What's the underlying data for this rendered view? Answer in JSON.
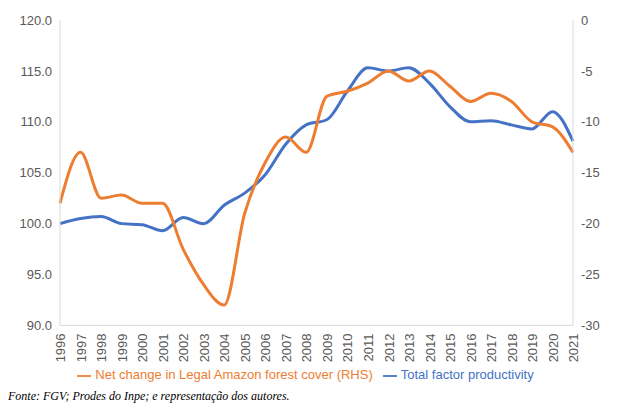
{
  "chart_data": {
    "type": "line",
    "line_style": "smooth",
    "marker": "none",
    "grid": false,
    "legend": "bottom",
    "categories": [
      "1996",
      "1997",
      "1998",
      "1999",
      "2000",
      "2001",
      "2002",
      "2003",
      "2004",
      "2005",
      "2006",
      "2007",
      "2008",
      "2009",
      "2010",
      "2011",
      "2012",
      "2013",
      "2014",
      "2015",
      "2016",
      "2017",
      "2018",
      "2019",
      "2020",
      "2021"
    ],
    "series": [
      {
        "name": "Total factor productivity",
        "color": "#4472C4",
        "axis": "y",
        "values": [
          100.0,
          100.5,
          100.7,
          100.0,
          99.9,
          99.3,
          100.6,
          100.0,
          101.8,
          103.0,
          104.8,
          107.8,
          109.7,
          110.2,
          113.0,
          115.3,
          115.0,
          115.3,
          113.8,
          111.5,
          110.0,
          110.1,
          109.7,
          109.3,
          111.0,
          108.1
        ]
      },
      {
        "name": "Net change in Legal Amazon forest cover (RHS)",
        "color": "#ED7D31",
        "axis": "y2",
        "values": [
          -18,
          -13,
          -17.5,
          -17.2,
          -18,
          -18,
          -22.5,
          -26,
          -28,
          -19,
          -14,
          -11.5,
          -13,
          -7.5,
          -7,
          -6.2,
          -5,
          -6,
          -5,
          -6.5,
          -8,
          -7.2,
          -8,
          -10,
          -10.5,
          -13
        ]
      }
    ],
    "ylim": [
      90,
      120
    ],
    "yticks": [
      {
        "value": 90,
        "label": "90.0"
      },
      {
        "value": 95,
        "label": "95.0"
      },
      {
        "value": 100,
        "label": "100.0"
      },
      {
        "value": 105,
        "label": "105.0"
      },
      {
        "value": 110,
        "label": "110.0"
      },
      {
        "value": 115,
        "label": "115.0"
      },
      {
        "value": 120,
        "label": "120.0"
      }
    ],
    "y2lim": [
      -30,
      0
    ],
    "y2ticks": [
      -30,
      -25,
      -20,
      -15,
      -10,
      -5,
      0
    ],
    "source": "Fonte: FGV; Prodes do Inpe; e representação dos autores."
  }
}
